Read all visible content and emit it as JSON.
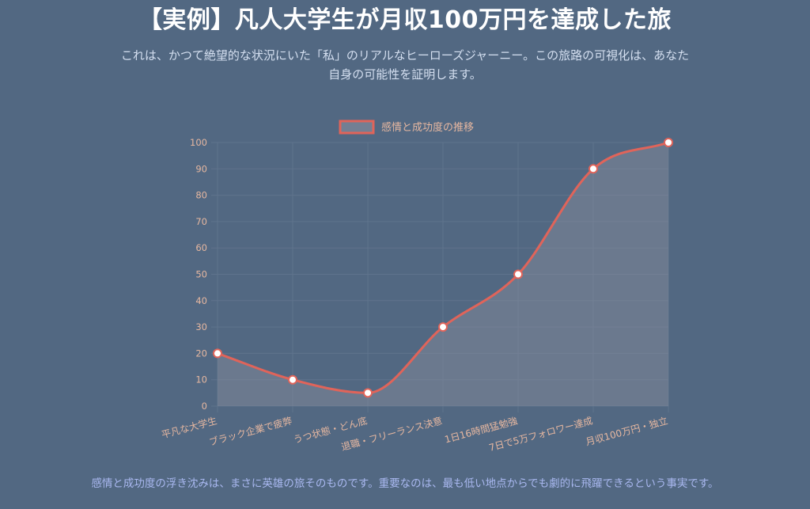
{
  "page": {
    "title": "【実例】凡人大学生が月収100万円を達成した旅",
    "subtitle": "これは、かつて絶望的な状況にいた「私」のリアルなヒーローズジャーニー。この旅路の可視化は、あなた自身の可能性を証明します。",
    "footer": "感情と成功度の浮き沈みは、まさに英雄の旅そのものです。重要なのは、最も低い地点からでも劇的に飛躍できるという事実です。"
  },
  "chart_data": {
    "type": "line",
    "categories": [
      "平凡な大学生",
      "ブラック企業で疲弊",
      "うつ状態・どん底",
      "退職・フリーランス決意",
      "1日16時間猛勉強",
      "7日で5万フォロワー達成",
      "月収100万円・独立"
    ],
    "series": [
      {
        "name": "感情と成功度の推移",
        "values": [
          20,
          10,
          5,
          30,
          50,
          90,
          100
        ]
      }
    ],
    "ylim": [
      0,
      100
    ],
    "yticks": [
      0,
      10,
      20,
      30,
      40,
      50,
      60,
      70,
      80,
      90,
      100
    ],
    "grid": true,
    "legend": "top",
    "colors": {
      "line": "#e0645a",
      "fill": "#8a8f9e",
      "point_fill": "#ffffff",
      "tick_text": "#e6b7a0",
      "grid": "#5f738c"
    }
  }
}
